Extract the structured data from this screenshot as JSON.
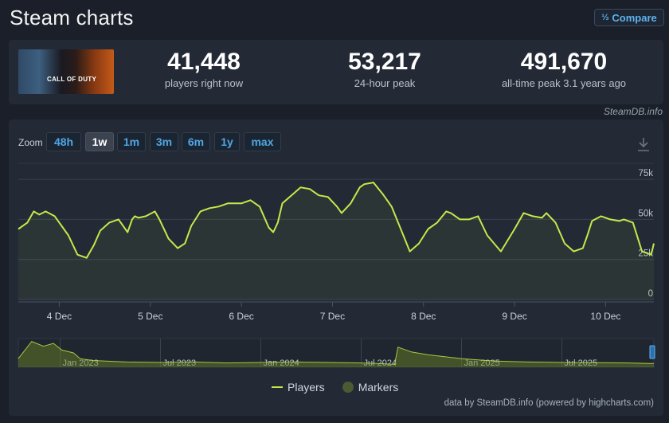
{
  "page": {
    "title": "Steam charts"
  },
  "compare": {
    "icon": "compare-icon",
    "label": "Compare"
  },
  "game": {
    "cover_text": "CALL OF DUTY"
  },
  "stats": [
    {
      "value": "41,448",
      "label": "players right now"
    },
    {
      "value": "53,217",
      "label": "24-hour peak"
    },
    {
      "value": "491,670",
      "label": "all-time peak 3.1 years ago"
    }
  ],
  "credit_top": "SteamDB.info",
  "zoom": {
    "label": "Zoom",
    "options": [
      "48h",
      "1w",
      "1m",
      "3m",
      "6m",
      "1y",
      "max"
    ],
    "selected": "1w"
  },
  "legend": {
    "players": "Players",
    "markers": "Markers"
  },
  "credit_bottom": "data by SteamDB.info (powered by highcharts.com)",
  "colors": {
    "line": "#c5e84a",
    "background": "#1a1f29",
    "panel": "#232a36",
    "accent": "#4fa6e6"
  },
  "chart_data": {
    "type": "line",
    "title": "",
    "ylim": [
      0,
      85000
    ],
    "y_ticks": [
      "0",
      "25k",
      "50k",
      "75k"
    ],
    "y_tick_values": [
      0,
      25000,
      50000,
      75000
    ],
    "x_ticks": [
      "4 Dec",
      "5 Dec",
      "6 Dec",
      "7 Dec",
      "8 Dec",
      "9 Dec",
      "10 Dec"
    ],
    "x_tick_days": [
      4,
      5,
      6,
      7,
      8,
      9,
      10
    ],
    "x_range_days": [
      3.55,
      10.53
    ],
    "series": [
      {
        "name": "Players",
        "x_days": [
          3.55,
          3.65,
          3.72,
          3.78,
          3.85,
          3.95,
          4.1,
          4.2,
          4.3,
          4.38,
          4.45,
          4.55,
          4.65,
          4.75,
          4.8,
          4.83,
          4.87,
          4.95,
          5.05,
          5.1,
          5.2,
          5.3,
          5.38,
          5.45,
          5.55,
          5.65,
          5.75,
          5.85,
          6.0,
          6.1,
          6.2,
          6.3,
          6.35,
          6.4,
          6.45,
          6.55,
          6.65,
          6.75,
          6.85,
          6.95,
          7.05,
          7.1,
          7.2,
          7.3,
          7.35,
          7.45,
          7.55,
          7.65,
          7.75,
          7.85,
          7.95,
          8.05,
          8.15,
          8.25,
          8.3,
          8.4,
          8.5,
          8.6,
          8.7,
          8.85,
          9.0,
          9.1,
          9.2,
          9.3,
          9.35,
          9.45,
          9.55,
          9.65,
          9.75,
          9.8,
          9.85,
          9.95,
          10.05,
          10.15,
          10.2,
          10.3,
          10.4,
          10.5,
          10.53
        ],
        "y": [
          44000,
          48000,
          55000,
          53000,
          55000,
          52000,
          40000,
          28000,
          26000,
          34000,
          43000,
          48000,
          50000,
          42000,
          50000,
          52000,
          51000,
          52000,
          55000,
          50000,
          38000,
          32000,
          35000,
          46000,
          55000,
          57000,
          58000,
          60000,
          60000,
          62000,
          58000,
          45000,
          42000,
          48000,
          60000,
          65000,
          70000,
          69000,
          65000,
          64000,
          58000,
          54000,
          60000,
          70000,
          72000,
          73000,
          66000,
          58000,
          44000,
          30000,
          35000,
          44000,
          48000,
          55000,
          54000,
          50000,
          50000,
          52000,
          40000,
          30000,
          44000,
          54000,
          52000,
          51000,
          54000,
          48000,
          35000,
          30000,
          32000,
          40000,
          49000,
          52000,
          50000,
          49000,
          50000,
          48000,
          30000,
          28000,
          35000
        ]
      }
    ],
    "navigator": {
      "x_labels": [
        "Jan 2023",
        "Jul 2023",
        "Jan 2024",
        "Jul 2024",
        "Jan 2025",
        "Jul 2025"
      ],
      "x_label_months": [
        2,
        8,
        14,
        20,
        26,
        32
      ],
      "x_range_months": [
        -0.5,
        37.5
      ],
      "values_month": [
        -0.5,
        0.3,
        1.0,
        1.6,
        2.1,
        2.8,
        3.2,
        4,
        6,
        8,
        10,
        12,
        14,
        16,
        18,
        20,
        21,
        22,
        22.2,
        23,
        24,
        25,
        26,
        28,
        30,
        32,
        34,
        36,
        37.2,
        37.5
      ],
      "values": [
        90000,
        270000,
        220000,
        250000,
        180000,
        150000,
        90000,
        70000,
        55000,
        50000,
        55000,
        45000,
        50000,
        55000,
        50000,
        45000,
        40000,
        30000,
        210000,
        160000,
        130000,
        110000,
        90000,
        65000,
        55000,
        50000,
        48000,
        45000,
        40000,
        40000
      ]
    }
  }
}
